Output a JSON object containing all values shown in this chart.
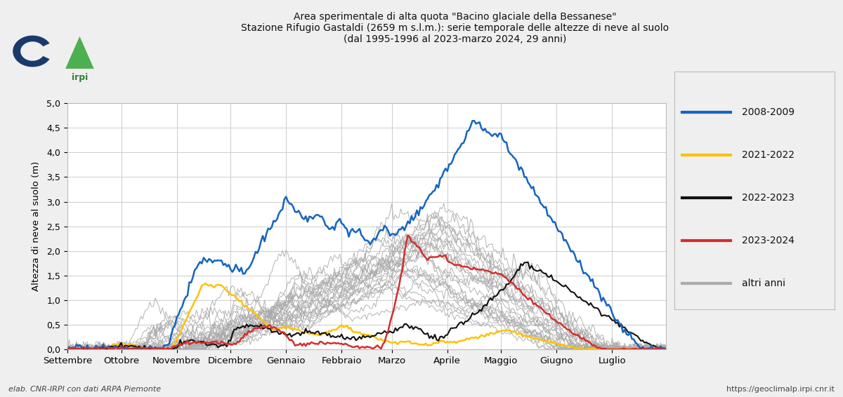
{
  "title_line1": "Area sperimentale di alta quota \"Bacino glaciale della Bessanese\"",
  "title_line2": "Stazione Rifugio Gastaldi (2659 m s.l.m.): serie temporale delle altezze di neve al suolo",
  "title_line3": "(dal 1995-1996 al 2023-marzo 2024, 29 anni)",
  "ylabel": "Altezza di neve al suolo (m)",
  "xlabel_ticks": [
    "Settembre",
    "Ottobre",
    "Novembre",
    "Dicembre",
    "Gennaio",
    "Febbraio",
    "Marzo",
    "Aprile",
    "Maggio",
    "Giugno",
    "Luglio"
  ],
  "ylim": [
    0.0,
    5.0
  ],
  "yticks": [
    0.0,
    0.5,
    1.0,
    1.5,
    2.0,
    2.5,
    3.0,
    3.5,
    4.0,
    4.5,
    5.0
  ],
  "legend_entries": [
    "2008-2009",
    "2021-2022",
    "2022-2023",
    "2023-2024",
    "altri anni"
  ],
  "colors": {
    "blue": "#1565C0",
    "yellow": "#FFC107",
    "black": "#111111",
    "red": "#D32F2F",
    "gray": "#AAAAAA",
    "background": "#EFEFEF",
    "plot_bg": "#FFFFFF",
    "grid": "#CCCCCC",
    "text": "#111111"
  },
  "footer_left": "elab. CNR-IRPI con dati ARPA Piemonte",
  "footer_right": "https://geoclimalp.irpi.cnr.it",
  "month_starts": [
    0,
    30,
    61,
    91,
    122,
    153,
    181,
    212,
    242,
    273,
    304
  ],
  "n_days": 335,
  "figsize": [
    12.0,
    5.66
  ],
  "dpi": 100
}
